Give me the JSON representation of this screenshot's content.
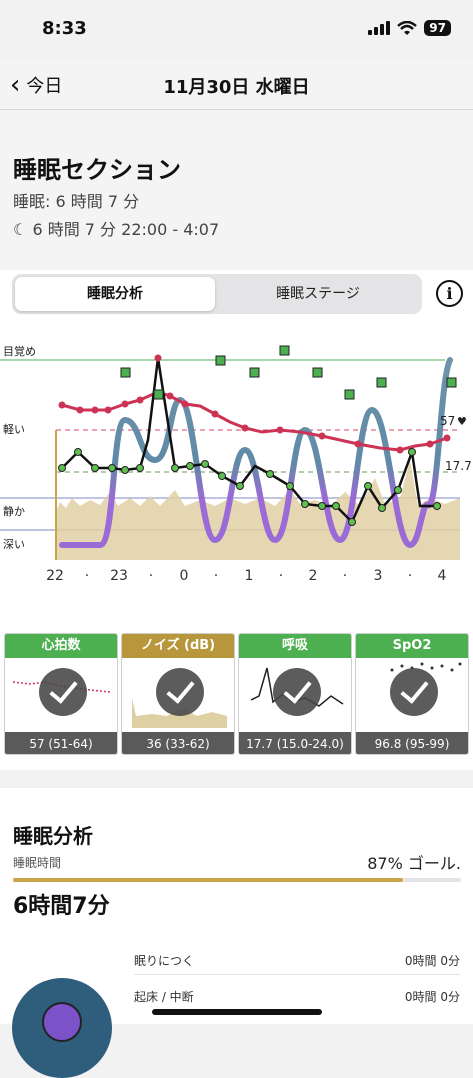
{
  "status": {
    "time": "8:33",
    "battery": "97"
  },
  "nav": {
    "back_label": "今日",
    "title": "11月30日 水曜日"
  },
  "header": {
    "title": "睡眠セクション",
    "duration_line": "睡眠: 6 時間 7 分",
    "range_line": "6 時間 7 分 22:00 - 4:07",
    "moon_icon": "moon-icon"
  },
  "tabs": {
    "active": "睡眠分析",
    "inactive": "睡眠ステージ",
    "info_icon": "info-icon"
  },
  "chart": {
    "y_labels": {
      "awake": "目覚め",
      "light": "軽い",
      "quiet": "静か",
      "deep": "深い"
    },
    "x_ticks": [
      "22",
      "·",
      "23",
      "·",
      "0",
      "·",
      "1",
      "·",
      "2",
      "·",
      "3",
      "·",
      "4"
    ],
    "hr_value": "57",
    "resp_value": "17.7",
    "heart_icon": "heart-icon",
    "colors": {
      "stage_blue": "#5f8aa6",
      "stage_purple": "#9a6ad6",
      "heart_rate": "#cc3355",
      "respiration": "#111111",
      "noise": "#d8c89a",
      "awake_green": "#4caf50"
    }
  },
  "cards": [
    {
      "title": "心拍数",
      "value": "57 (51-64)",
      "color": "#4caf50"
    },
    {
      "title": "ノイズ (dB)",
      "value": "36 (33-62)",
      "color": "#b8963c"
    },
    {
      "title": "呼吸",
      "value": "17.7 (15.0-24.0)",
      "color": "#4caf50"
    },
    {
      "title": "SpO2",
      "value": "96.8 (95-99)",
      "color": "#4caf50"
    }
  ],
  "analysis": {
    "title": "睡眠分析",
    "label": "睡眠時間",
    "goal": "87% ゴール.",
    "goal_fraction": 0.87,
    "total": "6時間7分",
    "rows": [
      {
        "label": "眠りにつく",
        "value": "0時間 0分"
      },
      {
        "label": "起床 / 中断",
        "value": "0時間 0分"
      }
    ]
  }
}
